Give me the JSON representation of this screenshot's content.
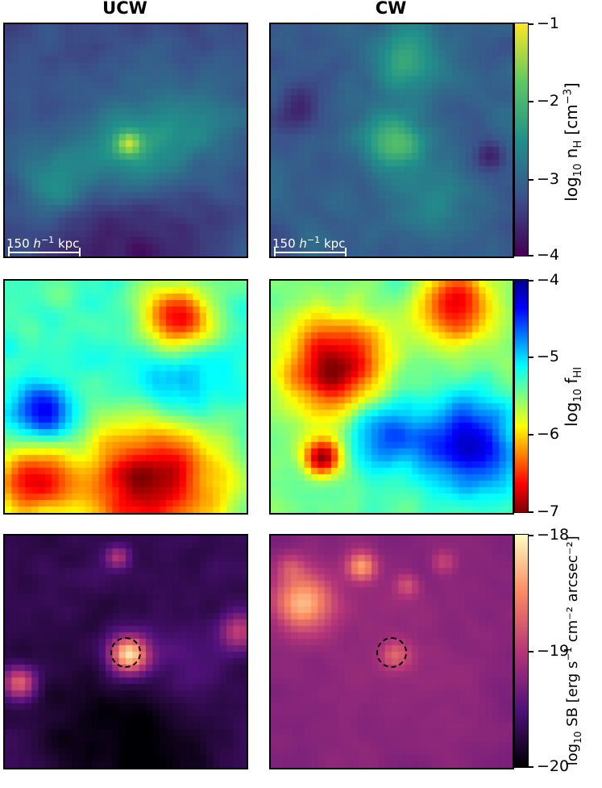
{
  "columns": {
    "left": "UCW",
    "right": "CW"
  },
  "scale_bar": {
    "value": "150",
    "unit_exp": "h",
    "unit_sup": "−1",
    "unit": "kpc"
  },
  "rows": [
    {
      "cmap": "viridis",
      "colorbar": {
        "label_pre": "log",
        "label_sub": "10",
        "label_main": " n",
        "label_sub2": "H",
        "label_post": " [cm",
        "label_sup": "−3",
        "label_end": "]",
        "ticks": [
          "−1",
          "−2",
          "−3",
          "−4"
        ]
      }
    },
    {
      "cmap": "jet_r",
      "colorbar": {
        "label_pre": "log",
        "label_sub": "10",
        "label_main": " f",
        "label_sub2": "HI",
        "label_post": "",
        "label_sup": "",
        "label_end": "",
        "ticks": [
          "−4",
          "−5",
          "−6",
          "−7"
        ]
      }
    },
    {
      "cmap": "magma",
      "colorbar": {
        "label_pre": "log",
        "label_sub": "10",
        "label_main": " SB [erg s",
        "label_sub2": "",
        "label_post": "",
        "label_sup": "−1",
        "label_end": " cm⁻² arcsec⁻²]",
        "ticks": [
          "−18",
          "−19",
          "−20"
        ]
      }
    }
  ]
}
